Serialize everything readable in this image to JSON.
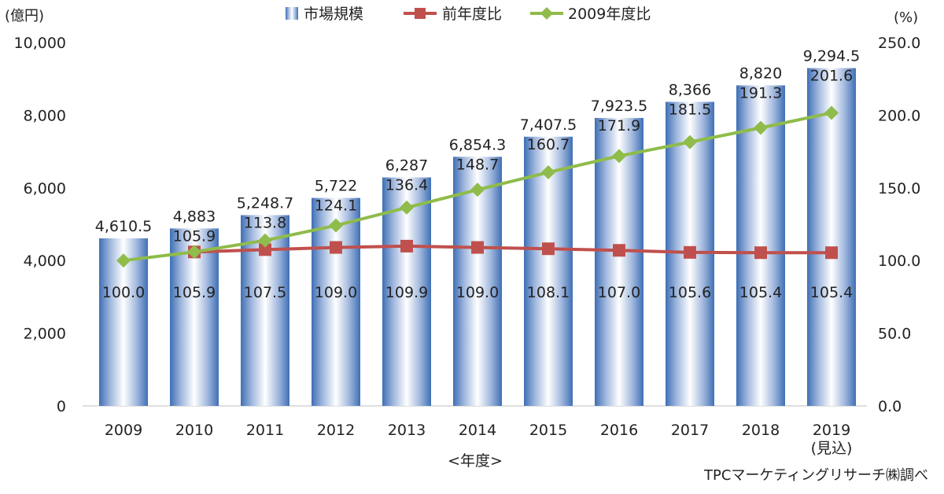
{
  "chart_data": {
    "type": "bar",
    "categories": [
      "2009",
      "2010",
      "2011",
      "2012",
      "2013",
      "2014",
      "2015",
      "2016",
      "2017",
      "2018",
      "2019"
    ],
    "category_sublabels": [
      "",
      "",
      "",
      "",
      "",
      "",
      "",
      "",
      "",
      "",
      "(見込)"
    ],
    "series": [
      {
        "name": "市場規模",
        "type": "bar",
        "axis": "left",
        "values": [
          4610.5,
          4883,
          5248.7,
          5722,
          6287,
          6854.3,
          7407.5,
          7923.5,
          8366,
          8820,
          9294.5
        ],
        "labels": [
          "4,610.5",
          "4,883",
          "5,248.7",
          "5,722",
          "6,287",
          "6,854.3",
          "7,407.5",
          "7,923.5",
          "8,366",
          "8,820",
          "9,294.5"
        ]
      },
      {
        "name": "前年度比",
        "type": "line",
        "axis": "right",
        "color": "#c0504d",
        "marker": "square",
        "values": [
          null,
          105.9,
          107.5,
          109.0,
          109.9,
          109.0,
          108.1,
          107.0,
          105.6,
          105.4,
          105.4
        ],
        "labels": [
          "100.0",
          "105.9",
          "107.5",
          "109.0",
          "109.9",
          "109.0",
          "108.1",
          "107.0",
          "105.6",
          "105.4",
          "105.4"
        ]
      },
      {
        "name": "2009年度比",
        "type": "line",
        "axis": "right",
        "color": "#8fbc4a",
        "marker": "diamond",
        "values": [
          100.0,
          105.9,
          113.8,
          124.1,
          136.4,
          148.7,
          160.7,
          171.9,
          181.5,
          191.3,
          201.6
        ],
        "labels": [
          "",
          "105.9",
          "113.8",
          "124.1",
          "136.4",
          "148.7",
          "160.7",
          "171.9",
          "181.5",
          "191.3",
          "201.6"
        ]
      }
    ],
    "y_left": {
      "unit": "(億円)",
      "min": 0,
      "max": 10000,
      "ticks": [
        0,
        2000,
        4000,
        6000,
        8000,
        10000
      ],
      "tick_labels": [
        "0",
        "2,000",
        "4,000",
        "6,000",
        "8,000",
        "10,000"
      ]
    },
    "y_right": {
      "unit": "(%)",
      "min": 0,
      "max": 250,
      "ticks": [
        0,
        50,
        100,
        150,
        200,
        250
      ],
      "tick_labels": [
        "0.0",
        "50.0",
        "100.0",
        "150.0",
        "200.0",
        "250.0"
      ]
    },
    "xlabel": "<年度>",
    "legend_position": "top",
    "grid": false,
    "source": "TPCマーケティングリサーチ㈱調べ"
  }
}
